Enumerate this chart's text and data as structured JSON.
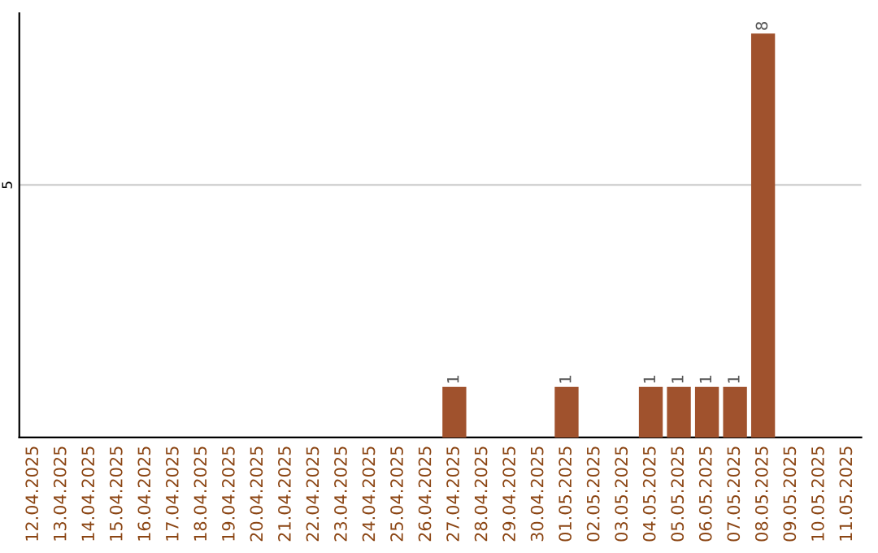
{
  "chart_data": {
    "type": "bar",
    "categories": [
      "12.04.2025",
      "13.04.2025",
      "14.04.2025",
      "15.04.2025",
      "16.04.2025",
      "17.04.2025",
      "18.04.2025",
      "19.04.2025",
      "20.04.2025",
      "21.04.2025",
      "22.04.2025",
      "23.04.2025",
      "24.04.2025",
      "25.04.2025",
      "26.04.2025",
      "27.04.2025",
      "28.04.2025",
      "29.04.2025",
      "30.04.2025",
      "01.05.2025",
      "02.05.2025",
      "03.05.2025",
      "04.05.2025",
      "05.05.2025",
      "06.05.2025",
      "07.05.2025",
      "08.05.2025",
      "09.05.2025",
      "10.05.2025",
      "11.05.2025"
    ],
    "values": [
      null,
      null,
      null,
      null,
      null,
      null,
      null,
      null,
      null,
      null,
      null,
      null,
      null,
      null,
      null,
      1,
      null,
      null,
      null,
      1,
      null,
      null,
      1,
      1,
      1,
      1,
      8,
      null,
      null,
      null
    ],
    "color": "#a0522d",
    "ylim": [
      0,
      8.4
    ],
    "yticks": [
      5
    ],
    "grid": "y",
    "data_labels": true
  }
}
